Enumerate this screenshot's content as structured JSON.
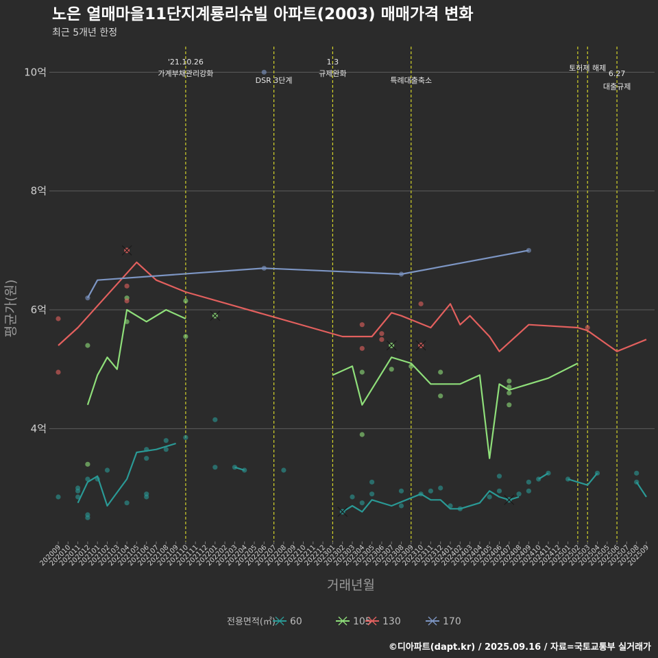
{
  "chart_data": {
    "type": "line",
    "title": "노은 열매마을11단지계룡리슈빌 아파트(2003) 매매가격 변화",
    "subtitle": "최근 5개년 한정",
    "xlabel": "거래년월",
    "ylabel": "평균가(원)",
    "ylim": [
      2.1,
      10.5
    ],
    "yticks": [
      4,
      6,
      8,
      10
    ],
    "ytick_labels": [
      "4억",
      "6억",
      "8억",
      "10억"
    ],
    "categories": [
      "202009",
      "202010",
      "202011",
      "202012",
      "202101",
      "202102",
      "202103",
      "202104",
      "202105",
      "202106",
      "202107",
      "202108",
      "202109",
      "202110",
      "202111",
      "202112",
      "202201",
      "202202",
      "202203",
      "202204",
      "202205",
      "202206",
      "202207",
      "202208",
      "202209",
      "202210",
      "202211",
      "202212",
      "202301",
      "202302",
      "202303",
      "202304",
      "202305",
      "202306",
      "202307",
      "202308",
      "202309",
      "202310",
      "202311",
      "202312",
      "202401",
      "202402",
      "202403",
      "202404",
      "202405",
      "202406",
      "202407",
      "202408",
      "202409",
      "202410",
      "202411",
      "202412",
      "202501",
      "202502",
      "202503",
      "202504",
      "202505",
      "202506",
      "202507",
      "202508",
      "202509"
    ],
    "grid": true,
    "legend": {
      "title": "전용면적(㎡)",
      "placement": "bottom"
    },
    "series": [
      {
        "name": "60",
        "color": "#2a9a96",
        "segments": [
          [
            [
              "202011",
              2.75
            ],
            [
              "202012",
              3.1
            ],
            [
              "202101",
              3.2
            ],
            [
              "202102",
              2.7
            ],
            [
              "202104",
              3.15
            ],
            [
              "202105",
              3.6
            ],
            [
              "202107",
              3.65
            ],
            [
              "202109",
              3.75
            ]
          ],
          [
            [
              "202203",
              3.35
            ],
            [
              "202204",
              3.3
            ]
          ],
          [
            [
              "202302",
              2.6
            ],
            [
              "202303",
              2.7
            ],
            [
              "202304",
              2.6
            ],
            [
              "202305",
              2.8
            ],
            [
              "202307",
              2.7
            ],
            [
              "202310",
              2.9
            ],
            [
              "202311",
              2.8
            ],
            [
              "202312",
              2.8
            ],
            [
              "202401",
              2.65
            ],
            [
              "202402",
              2.65
            ],
            [
              "202404",
              2.75
            ],
            [
              "202405",
              2.95
            ],
            [
              "202406",
              2.85
            ],
            [
              "202407",
              2.8
            ],
            [
              "202408",
              2.85
            ]
          ],
          [
            [
              "202410",
              3.15
            ],
            [
              "202411",
              3.25
            ]
          ],
          [
            [
              "202501",
              3.15
            ],
            [
              "202503",
              3.05
            ],
            [
              "202504",
              3.25
            ]
          ],
          [
            [
              "202508",
              3.1
            ],
            [
              "202509",
              2.85
            ]
          ]
        ],
        "points": [
          [
            "202009",
            2.85
          ],
          [
            "202011",
            3.0
          ],
          [
            "202011",
            2.95
          ],
          [
            "202011",
            2.85
          ],
          [
            "202012",
            2.55
          ],
          [
            "202012",
            2.5
          ],
          [
            "202012",
            3.15
          ],
          [
            "202101",
            3.15
          ],
          [
            "202102",
            3.3
          ],
          [
            "202104",
            2.75
          ],
          [
            "202106",
            2.9
          ],
          [
            "202106",
            2.85
          ],
          [
            "202106",
            3.5
          ],
          [
            "202106",
            3.65
          ],
          [
            "202108",
            3.65
          ],
          [
            "202108",
            3.8
          ],
          [
            "202110",
            3.85
          ],
          [
            "202201",
            4.15
          ],
          [
            "202201",
            3.35
          ],
          [
            "202203",
            3.35
          ],
          [
            "202204",
            3.3
          ],
          [
            "202208",
            3.3
          ],
          [
            "202303",
            2.85
          ],
          [
            "202304",
            2.75
          ],
          [
            "202305",
            2.9
          ],
          [
            "202305",
            3.1
          ],
          [
            "202308",
            2.7
          ],
          [
            "202308",
            2.95
          ],
          [
            "202310",
            2.9
          ],
          [
            "202311",
            2.95
          ],
          [
            "202312",
            3.0
          ],
          [
            "202401",
            2.7
          ],
          [
            "202402",
            2.65
          ],
          [
            "202405",
            2.85
          ],
          [
            "202406",
            3.2
          ],
          [
            "202406",
            2.95
          ],
          [
            "202408",
            2.9
          ],
          [
            "202409",
            2.95
          ],
          [
            "202409",
            3.1
          ],
          [
            "202410",
            3.15
          ],
          [
            "202411",
            3.25
          ],
          [
            "202501",
            3.15
          ],
          [
            "202504",
            3.25
          ],
          [
            "202508",
            3.25
          ],
          [
            "202508",
            3.1
          ]
        ],
        "cancelled": [
          [
            "202302",
            2.6
          ],
          [
            "202407",
            2.8
          ]
        ]
      },
      {
        "name": "105",
        "color": "#8fdf7a",
        "segments": [
          [
            [
              "202012",
              4.4
            ],
            [
              "202101",
              4.9
            ],
            [
              "202102",
              5.2
            ],
            [
              "202103",
              5.0
            ],
            [
              "202104",
              6.0
            ],
            [
              "202106",
              5.8
            ],
            [
              "202108",
              6.0
            ],
            [
              "202110",
              5.85
            ]
          ],
          [
            [
              "202301",
              4.9
            ],
            [
              "202303",
              5.05
            ],
            [
              "202304",
              4.4
            ],
            [
              "202307",
              5.2
            ],
            [
              "202309",
              5.1
            ],
            [
              "202311",
              4.75
            ],
            [
              "202402",
              4.75
            ],
            [
              "202404",
              4.9
            ],
            [
              "202405",
              3.5
            ],
            [
              "202406",
              4.75
            ],
            [
              "202407",
              4.65
            ],
            [
              "202411",
              4.85
            ],
            [
              "202502",
              5.1
            ]
          ]
        ],
        "points": [
          [
            "202012",
            5.4
          ],
          [
            "202012",
            3.4
          ],
          [
            "202104",
            6.2
          ],
          [
            "202104",
            5.8
          ],
          [
            "202110",
            6.15
          ],
          [
            "202110",
            5.55
          ],
          [
            "202304",
            4.95
          ],
          [
            "202304",
            3.9
          ],
          [
            "202307",
            5.0
          ],
          [
            "202309",
            5.05
          ],
          [
            "202312",
            4.95
          ],
          [
            "202312",
            4.55
          ],
          [
            "202407",
            4.8
          ],
          [
            "202407",
            4.7
          ],
          [
            "202407",
            4.6
          ],
          [
            "202407",
            4.4
          ]
        ],
        "cancelled": [
          [
            "202201",
            5.9
          ],
          [
            "202307",
            5.4
          ]
        ]
      },
      {
        "name": "130",
        "color": "#e3605e",
        "segments": [
          [
            [
              "202009",
              5.4
            ],
            [
              "202011",
              5.7
            ],
            [
              "202105",
              6.8
            ],
            [
              "202107",
              6.5
            ],
            [
              "202110",
              6.3
            ],
            [
              "202302",
              5.55
            ],
            [
              "202305",
              5.55
            ],
            [
              "202307",
              5.95
            ],
            [
              "202308",
              5.9
            ],
            [
              "202311",
              5.7
            ],
            [
              "202401",
              6.1
            ],
            [
              "202402",
              5.75
            ],
            [
              "202403",
              5.9
            ],
            [
              "202405",
              5.55
            ],
            [
              "202406",
              5.3
            ],
            [
              "202409",
              5.75
            ],
            [
              "202502",
              5.7
            ],
            [
              "202503",
              5.65
            ],
            [
              "202506",
              5.3
            ],
            [
              "202509",
              5.5
            ]
          ]
        ],
        "points": [
          [
            "202009",
            5.85
          ],
          [
            "202009",
            4.95
          ],
          [
            "202104",
            6.4
          ],
          [
            "202104",
            6.15
          ],
          [
            "202304",
            5.75
          ],
          [
            "202304",
            5.35
          ],
          [
            "202306",
            5.6
          ],
          [
            "202306",
            5.5
          ],
          [
            "202310",
            6.1
          ],
          [
            "202503",
            5.7
          ]
        ],
        "cancelled": [
          [
            "202104",
            7.0
          ],
          [
            "202310",
            5.4
          ]
        ]
      },
      {
        "name": "170",
        "color": "#7d96c4",
        "segments": [
          [
            [
              "202012",
              6.2
            ],
            [
              "202101",
              6.5
            ],
            [
              "202206",
              6.7
            ],
            [
              "202308",
              6.6
            ],
            [
              "202409",
              7.0
            ]
          ]
        ],
        "points": [
          [
            "202012",
            6.2
          ],
          [
            "202206",
            6.7
          ],
          [
            "202308",
            6.6
          ],
          [
            "202409",
            7.0
          ],
          [
            "202206",
            10.0
          ]
        ],
        "cancelled": []
      }
    ],
    "annotations": [
      {
        "at": "202110",
        "text": [
          "'21.10.26",
          "가계부채관리강화"
        ],
        "placement": "upper"
      },
      {
        "at": "202207",
        "text": [
          "DSR 3단계"
        ],
        "placement": "lower"
      },
      {
        "at": "202301",
        "text": [
          "1.3",
          "규제완화"
        ],
        "placement": "upper"
      },
      {
        "at": "202309",
        "text": [
          "특례대출축소"
        ],
        "placement": "lower"
      },
      {
        "at": "202502",
        "text": [],
        "placement": "none"
      },
      {
        "at": "202503",
        "text": [
          "토허제 해제"
        ],
        "placement": "upper-single"
      },
      {
        "at": "202506",
        "text": [
          "6.27",
          "대출규제"
        ],
        "placement": "low-pair"
      }
    ]
  },
  "caption": "©디아파트(dapt.kr) / 2025.09.16 / 자료=국토교통부 실거래가"
}
